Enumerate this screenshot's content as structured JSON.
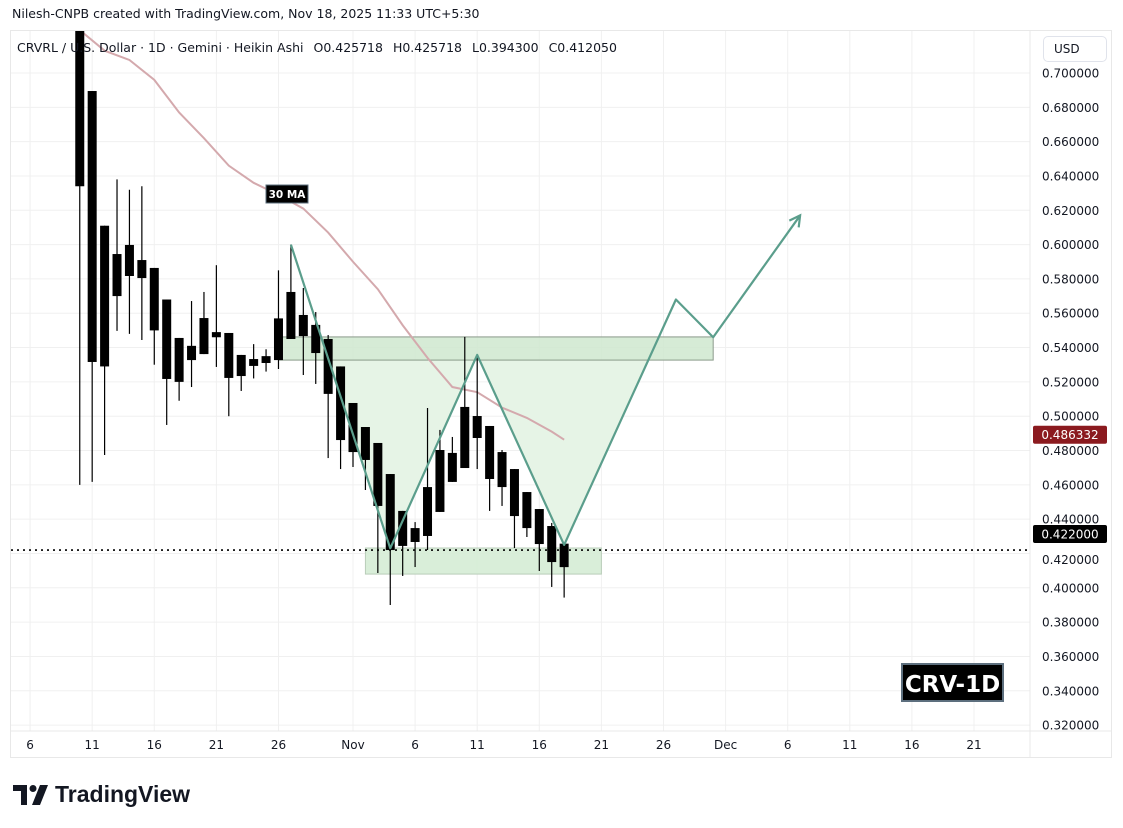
{
  "attribution": "Nilesh-CNPB created with TradingView.com, Nov 18, 2025 11:33 UTC+5:30",
  "legend": {
    "symbol": "CRVRL / U.S. Dollar · 1D · Gemini · Heikin Ashi",
    "open": "O0.425718",
    "high": "H0.425718",
    "low": "L0.394300",
    "close": "C0.412050"
  },
  "currency_button": "USD",
  "brand": "TradingView",
  "ma_label": "30 MA",
  "watermark": "CRV-1D",
  "chart_data": {
    "type": "candlestick",
    "chart_style": "Heikin Ashi",
    "colors": {
      "candle": "#000000",
      "ma": "#d4a9ad",
      "pattern": "#5b9e8c",
      "zone": "#c8e6c9",
      "ma_price_label": "#8b1a1f",
      "last_price_label": "#000000"
    },
    "ylim": [
      0.32,
      0.71
    ],
    "y_ticks": [
      "0.320000",
      "0.340000",
      "0.360000",
      "0.380000",
      "0.400000",
      "0.420000",
      "0.440000",
      "0.460000",
      "0.480000",
      "0.500000",
      "0.520000",
      "0.540000",
      "0.560000",
      "0.580000",
      "0.600000",
      "0.620000",
      "0.640000",
      "0.660000",
      "0.680000",
      "0.700000"
    ],
    "x_ticks": [
      {
        "label": "6",
        "date": "2025-10-06"
      },
      {
        "label": "11",
        "date": "2025-10-11"
      },
      {
        "label": "16",
        "date": "2025-10-16"
      },
      {
        "label": "21",
        "date": "2025-10-21"
      },
      {
        "label": "26",
        "date": "2025-10-26"
      },
      {
        "label": "Nov",
        "date": "2025-11-01"
      },
      {
        "label": "6",
        "date": "2025-11-06"
      },
      {
        "label": "11",
        "date": "2025-11-11"
      },
      {
        "label": "16",
        "date": "2025-11-16"
      },
      {
        "label": "21",
        "date": "2025-11-21"
      },
      {
        "label": "26",
        "date": "2025-11-26"
      },
      {
        "label": "Dec",
        "date": "2025-12-01"
      },
      {
        "label": "6",
        "date": "2025-12-06"
      },
      {
        "label": "11",
        "date": "2025-12-11"
      },
      {
        "label": "16",
        "date": "2025-12-16"
      },
      {
        "label": "21",
        "date": "2025-12-21"
      }
    ],
    "grid": true,
    "candles": [
      {
        "d": "2025-10-10",
        "o": 0.725,
        "h": 0.728,
        "l": 0.46,
        "c": 0.634
      },
      {
        "d": "2025-10-11",
        "o": 0.6895,
        "h": 0.6895,
        "l": 0.4617,
        "c": 0.5316
      },
      {
        "d": "2025-10-12",
        "o": 0.611,
        "h": 0.611,
        "l": 0.4774,
        "c": 0.529
      },
      {
        "d": "2025-10-13",
        "o": 0.57,
        "h": 0.638,
        "l": 0.5497,
        "c": 0.5945
      },
      {
        "d": "2025-10-14",
        "o": 0.5817,
        "h": 0.632,
        "l": 0.548,
        "c": 0.5998
      },
      {
        "d": "2025-10-15",
        "o": 0.591,
        "h": 0.634,
        "l": 0.5444,
        "c": 0.5805
      },
      {
        "d": "2025-10-16",
        "o": 0.5864,
        "h": 0.5864,
        "l": 0.53,
        "c": 0.55
      },
      {
        "d": "2025-10-17",
        "o": 0.568,
        "h": 0.568,
        "l": 0.4949,
        "c": 0.5217
      },
      {
        "d": "2025-10-18",
        "o": 0.5456,
        "h": 0.5456,
        "l": 0.509,
        "c": 0.52
      },
      {
        "d": "2025-10-19",
        "o": 0.5327,
        "h": 0.5671,
        "l": 0.517,
        "c": 0.541
      },
      {
        "d": "2025-10-20",
        "o": 0.5362,
        "h": 0.5724,
        "l": 0.5362,
        "c": 0.5572
      },
      {
        "d": "2025-10-21",
        "o": 0.549,
        "h": 0.588,
        "l": 0.5287,
        "c": 0.546
      },
      {
        "d": "2025-10-22",
        "o": 0.5485,
        "h": 0.5485,
        "l": 0.5,
        "c": 0.5223
      },
      {
        "d": "2025-10-23",
        "o": 0.5357,
        "h": 0.5357,
        "l": 0.5147,
        "c": 0.5234
      },
      {
        "d": "2025-10-24",
        "o": 0.5293,
        "h": 0.542,
        "l": 0.522,
        "c": 0.5333
      },
      {
        "d": "2025-10-25",
        "o": 0.531,
        "h": 0.539,
        "l": 0.526,
        "c": 0.535
      },
      {
        "d": "2025-10-26",
        "o": 0.5327,
        "h": 0.585,
        "l": 0.5275,
        "c": 0.557
      },
      {
        "d": "2025-10-27",
        "o": 0.545,
        "h": 0.6,
        "l": 0.545,
        "c": 0.5724
      },
      {
        "d": "2025-10-28",
        "o": 0.559,
        "h": 0.5747,
        "l": 0.524,
        "c": 0.5467
      },
      {
        "d": "2025-10-29",
        "o": 0.5532,
        "h": 0.5607,
        "l": 0.5188,
        "c": 0.5368
      },
      {
        "d": "2025-10-30",
        "o": 0.545,
        "h": 0.5473,
        "l": 0.4756,
        "c": 0.513
      },
      {
        "d": "2025-10-31",
        "o": 0.529,
        "h": 0.529,
        "l": 0.4692,
        "c": 0.4861
      },
      {
        "d": "2025-11-01",
        "o": 0.5077,
        "h": 0.5077,
        "l": 0.4704,
        "c": 0.4791
      },
      {
        "d": "2025-11-02",
        "o": 0.4937,
        "h": 0.4937,
        "l": 0.457,
        "c": 0.4745
      },
      {
        "d": "2025-11-03",
        "o": 0.4844,
        "h": 0.4844,
        "l": 0.4086,
        "c": 0.4477
      },
      {
        "d": "2025-11-04",
        "o": 0.4663,
        "h": 0.4663,
        "l": 0.39,
        "c": 0.422
      },
      {
        "d": "2025-11-05",
        "o": 0.4448,
        "h": 0.4448,
        "l": 0.4069,
        "c": 0.4244
      },
      {
        "d": "2025-11-06",
        "o": 0.4267,
        "h": 0.4383,
        "l": 0.4121,
        "c": 0.4348
      },
      {
        "d": "2025-11-07",
        "o": 0.4302,
        "h": 0.5048,
        "l": 0.422,
        "c": 0.4587
      },
      {
        "d": "2025-11-08",
        "o": 0.4442,
        "h": 0.492,
        "l": 0.4442,
        "c": 0.4803
      },
      {
        "d": "2025-11-09",
        "o": 0.4617,
        "h": 0.4879,
        "l": 0.4617,
        "c": 0.4786
      },
      {
        "d": "2025-11-10",
        "o": 0.4698,
        "h": 0.5462,
        "l": 0.4698,
        "c": 0.5054
      },
      {
        "d": "2025-11-11",
        "o": 0.5001,
        "h": 0.5357,
        "l": 0.4692,
        "c": 0.4873
      },
      {
        "d": "2025-11-12",
        "o": 0.4943,
        "h": 0.4943,
        "l": 0.4448,
        "c": 0.4634
      },
      {
        "d": "2025-11-13",
        "o": 0.4791,
        "h": 0.4803,
        "l": 0.4477,
        "c": 0.4587
      },
      {
        "d": "2025-11-14",
        "o": 0.4692,
        "h": 0.4692,
        "l": 0.4232,
        "c": 0.4418
      },
      {
        "d": "2025-11-15",
        "o": 0.4558,
        "h": 0.4558,
        "l": 0.4296,
        "c": 0.4348
      },
      {
        "d": "2025-11-16",
        "o": 0.4459,
        "h": 0.4459,
        "l": 0.4098,
        "c": 0.4255
      },
      {
        "d": "2025-11-17",
        "o": 0.436,
        "h": 0.4378,
        "l": 0.4005,
        "c": 0.415
      },
      {
        "d": "2025-11-18",
        "o": 0.425718,
        "h": 0.425718,
        "l": 0.3943,
        "c": 0.41205
      }
    ],
    "ma": {
      "name": "30 MA",
      "points": [
        [
          "2025-10-10",
          0.725
        ],
        [
          "2025-10-12",
          0.713
        ],
        [
          "2025-10-14",
          0.7076
        ],
        [
          "2025-10-16",
          0.696
        ],
        [
          "2025-10-18",
          0.677
        ],
        [
          "2025-10-20",
          0.662
        ],
        [
          "2025-10-22",
          0.646
        ],
        [
          "2025-10-24",
          0.636
        ],
        [
          "2025-10-26",
          0.629
        ],
        [
          "2025-10-28",
          0.621
        ],
        [
          "2025-10-30",
          0.607
        ],
        [
          "2025-11-01",
          0.59
        ],
        [
          "2025-11-03",
          0.574
        ],
        [
          "2025-11-05",
          0.553
        ],
        [
          "2025-11-07",
          0.534
        ],
        [
          "2025-11-09",
          0.517
        ],
        [
          "2025-11-11",
          0.514
        ],
        [
          "2025-11-13",
          0.505
        ],
        [
          "2025-11-15",
          0.499
        ],
        [
          "2025-11-17",
          0.491
        ],
        [
          "2025-11-18",
          0.4863
        ]
      ]
    },
    "ma_last_value": "0.486332",
    "last_price": "0.422000",
    "last_price_value": 0.422,
    "annotations": {
      "pattern_path": [
        [
          "2025-10-27",
          0.6
        ],
        [
          "2025-11-04",
          0.423
        ],
        [
          "2025-11-11",
          0.5357
        ],
        [
          "2025-11-18",
          0.425
        ],
        [
          "2025-11-27",
          0.568
        ],
        [
          "2025-11-30",
          0.546
        ],
        [
          "2025-12-07",
          0.617
        ]
      ],
      "resistance_zone": {
        "from": "2025-10-26",
        "to": "2025-11-30",
        "top": 0.5462,
        "bottom": 0.5327
      },
      "support_zone": {
        "from": "2025-11-02",
        "to": "2025-11-21",
        "top": 0.4232,
        "bottom": 0.408
      }
    }
  }
}
